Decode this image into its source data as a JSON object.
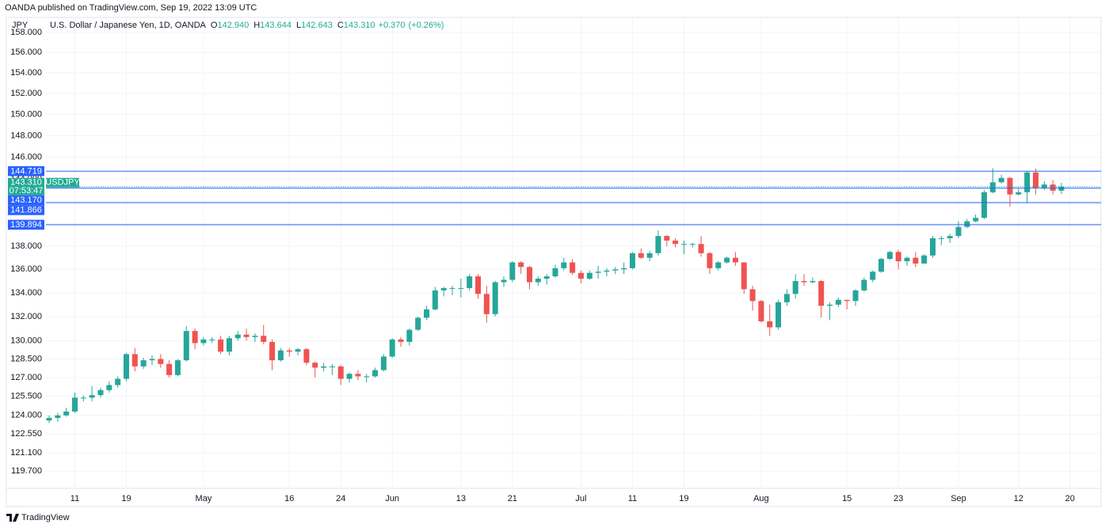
{
  "header": {
    "publisher": "OANDA published on TradingView.com, Sep 19, 2022 13:09 UTC",
    "brand": "TradingView"
  },
  "chart_data": {
    "type": "candlestick",
    "title": "U.S. Dollar / Japanese Yen, 1D, OANDA",
    "currency": "JPY",
    "legend_items": [
      {
        "prefix": "O",
        "value": 142.94,
        "label": "142.940"
      },
      {
        "prefix": "H",
        "value": 143.644,
        "label": "143.644"
      },
      {
        "prefix": "L",
        "value": 142.643,
        "label": "142.643"
      },
      {
        "prefix": "C",
        "value": 143.31,
        "label": "143.310"
      }
    ],
    "change": {
      "value": 0.37,
      "label": "+0.370"
    },
    "change_pct": {
      "value": 0.26,
      "label": "(+0.26%)"
    },
    "log_scale": true,
    "grid": true,
    "ylim": [
      118.4,
      159.5
    ],
    "yticks": [
      {
        "value": 119.7,
        "label": "119.700"
      },
      {
        "value": 121.1,
        "label": "121.100"
      },
      {
        "value": 122.55,
        "label": "122.550"
      },
      {
        "value": 124,
        "label": "124.000"
      },
      {
        "value": 125.5,
        "label": "125.500"
      },
      {
        "value": 127,
        "label": "127.000"
      },
      {
        "value": 128.5,
        "label": "128.500"
      },
      {
        "value": 130,
        "label": "130.000"
      },
      {
        "value": 132,
        "label": "132.000"
      },
      {
        "value": 134,
        "label": "134.000"
      },
      {
        "value": 136,
        "label": "136.000"
      },
      {
        "value": 138,
        "label": "138.000"
      },
      {
        "value": 140,
        "label": "140.000"
      },
      {
        "value": 142,
        "label": "142.000"
      },
      {
        "value": 144,
        "label": "144.000"
      },
      {
        "value": 146,
        "label": "146.000"
      },
      {
        "value": 148,
        "label": "148.000"
      },
      {
        "value": 150,
        "label": "150.000"
      },
      {
        "value": 152,
        "label": "152.000"
      },
      {
        "value": 154,
        "label": "154.000"
      },
      {
        "value": 156,
        "label": "156.000"
      },
      {
        "value": 158,
        "label": "158.000"
      }
    ],
    "xticks": [
      {
        "value": "2022-04-11",
        "label": "11"
      },
      {
        "value": "2022-04-19",
        "label": "19"
      },
      {
        "value": "2022-05-02",
        "label": "May"
      },
      {
        "value": "2022-05-16",
        "label": "16"
      },
      {
        "value": "2022-05-24",
        "label": "24"
      },
      {
        "value": "2022-06-01",
        "label": "Jun"
      },
      {
        "value": "2022-06-13",
        "label": "13"
      },
      {
        "value": "2022-06-21",
        "label": "21"
      },
      {
        "value": "2022-07-01",
        "label": "Jul"
      },
      {
        "value": "2022-07-11",
        "label": "11"
      },
      {
        "value": "2022-07-19",
        "label": "19"
      },
      {
        "value": "2022-08-01",
        "label": "Aug"
      },
      {
        "value": "2022-08-15",
        "label": "15"
      },
      {
        "value": "2022-08-23",
        "label": "23"
      },
      {
        "value": "2022-09-01",
        "label": "Sep"
      },
      {
        "value": "2022-09-12",
        "label": "12"
      },
      {
        "value": "2022-09-20",
        "label": "20"
      }
    ],
    "x": [
      "2022-04-06",
      "2022-04-07",
      "2022-04-08",
      "2022-04-11",
      "2022-04-12",
      "2022-04-13",
      "2022-04-14",
      "2022-04-15",
      "2022-04-18",
      "2022-04-19",
      "2022-04-20",
      "2022-04-21",
      "2022-04-22",
      "2022-04-25",
      "2022-04-26",
      "2022-04-27",
      "2022-04-28",
      "2022-04-29",
      "2022-05-02",
      "2022-05-03",
      "2022-05-04",
      "2022-05-05",
      "2022-05-06",
      "2022-05-09",
      "2022-05-10",
      "2022-05-11",
      "2022-05-12",
      "2022-05-13",
      "2022-05-16",
      "2022-05-17",
      "2022-05-18",
      "2022-05-19",
      "2022-05-20",
      "2022-05-23",
      "2022-05-24",
      "2022-05-25",
      "2022-05-26",
      "2022-05-27",
      "2022-05-30",
      "2022-05-31",
      "2022-06-01",
      "2022-06-02",
      "2022-06-03",
      "2022-06-06",
      "2022-06-07",
      "2022-06-08",
      "2022-06-09",
      "2022-06-10",
      "2022-06-13",
      "2022-06-14",
      "2022-06-15",
      "2022-06-16",
      "2022-06-17",
      "2022-06-20",
      "2022-06-21",
      "2022-06-22",
      "2022-06-23",
      "2022-06-24",
      "2022-06-27",
      "2022-06-28",
      "2022-06-29",
      "2022-06-30",
      "2022-07-01",
      "2022-07-04",
      "2022-07-05",
      "2022-07-06",
      "2022-07-07",
      "2022-07-08",
      "2022-07-11",
      "2022-07-12",
      "2022-07-13",
      "2022-07-14",
      "2022-07-15",
      "2022-07-18",
      "2022-07-19",
      "2022-07-20",
      "2022-07-21",
      "2022-07-22",
      "2022-07-25",
      "2022-07-26",
      "2022-07-27",
      "2022-07-28",
      "2022-07-29",
      "2022-08-01",
      "2022-08-02",
      "2022-08-03",
      "2022-08-04",
      "2022-08-05",
      "2022-08-08",
      "2022-08-09",
      "2022-08-10",
      "2022-08-11",
      "2022-08-12",
      "2022-08-15",
      "2022-08-16",
      "2022-08-17",
      "2022-08-18",
      "2022-08-19",
      "2022-08-22",
      "2022-08-23",
      "2022-08-24",
      "2022-08-25",
      "2022-08-26",
      "2022-08-29",
      "2022-08-30",
      "2022-08-31",
      "2022-09-01",
      "2022-09-02",
      "2022-09-05",
      "2022-09-06",
      "2022-09-07",
      "2022-09-08",
      "2022-09-09",
      "2022-09-12",
      "2022-09-13",
      "2022-09-14",
      "2022-09-15",
      "2022-09-16",
      "2022-09-19"
    ],
    "series": [
      {
        "name": "USDJPY",
        "up_color": "#26a69a",
        "down_color": "#ef5350",
        "open": [
          123.6,
          123.8,
          124.0,
          124.3,
          125.4,
          125.4,
          125.6,
          126.0,
          126.4,
          126.9,
          128.9,
          127.9,
          128.4,
          128.5,
          128.1,
          127.2,
          128.4,
          130.8,
          129.8,
          130.1,
          130.1,
          129.1,
          130.2,
          130.5,
          130.3,
          130.4,
          129.9,
          128.4,
          129.2,
          129.1,
          129.3,
          128.2,
          127.8,
          127.9,
          127.9,
          126.9,
          127.3,
          127.1,
          127.1,
          127.6,
          128.7,
          130.1,
          129.9,
          130.9,
          131.9,
          132.6,
          134.2,
          134.4,
          134.4,
          134.4,
          135.4,
          133.9,
          132.2,
          134.9,
          135.1,
          136.6,
          136.2,
          134.9,
          135.2,
          135.4,
          136.1,
          136.6,
          135.7,
          135.2,
          135.7,
          135.8,
          135.9,
          136.0,
          136.1,
          137.4,
          137.0,
          137.4,
          138.9,
          138.5,
          138.2,
          138.2,
          138.2,
          137.4,
          136.1,
          136.6,
          137.0,
          136.6,
          134.3,
          133.3,
          131.6,
          131.1,
          133.2,
          133.9,
          135.0,
          134.9,
          135.0,
          132.9,
          133.0,
          133.4,
          133.3,
          134.2,
          135.1,
          135.8,
          136.9,
          137.5,
          136.7,
          137.0,
          136.5,
          137.2,
          138.7,
          138.7,
          138.9,
          139.7,
          140.2,
          140.5,
          142.8,
          143.7,
          144.1,
          142.6,
          142.8,
          144.6,
          143.2,
          143.5,
          142.94
        ],
        "high": [
          124.0,
          124.2,
          124.6,
          125.8,
          125.6,
          126.3,
          126.2,
          126.7,
          127.1,
          129.0,
          129.4,
          128.6,
          128.8,
          128.9,
          128.4,
          128.5,
          131.2,
          131.0,
          130.3,
          130.3,
          130.4,
          130.4,
          130.8,
          131.0,
          130.6,
          131.3,
          130.1,
          129.4,
          129.4,
          129.4,
          129.4,
          128.3,
          128.2,
          128.1,
          128.0,
          127.4,
          127.6,
          127.3,
          127.8,
          128.9,
          130.2,
          130.3,
          131.0,
          132.0,
          132.9,
          134.5,
          134.5,
          134.6,
          135.2,
          135.6,
          135.6,
          134.6,
          135.0,
          135.4,
          136.7,
          136.7,
          136.3,
          135.4,
          135.6,
          136.4,
          137.0,
          136.9,
          135.9,
          135.9,
          136.3,
          136.1,
          136.2,
          136.6,
          137.5,
          137.8,
          137.6,
          139.4,
          139.0,
          138.7,
          138.5,
          138.3,
          138.9,
          137.5,
          136.7,
          137.1,
          137.5,
          136.6,
          134.6,
          133.4,
          133.0,
          133.4,
          134.3,
          135.6,
          135.6,
          135.3,
          135.1,
          133.2,
          133.6,
          133.4,
          134.3,
          135.3,
          135.9,
          137.0,
          137.6,
          137.7,
          137.1,
          137.5,
          137.3,
          138.9,
          138.9,
          139.1,
          140.2,
          140.4,
          140.8,
          143.0,
          144.99,
          144.4,
          144.2,
          143.1,
          144.7,
          144.96,
          143.8,
          143.9,
          143.644
        ],
        "low": [
          123.4,
          123.5,
          123.9,
          124.2,
          125.1,
          125.1,
          125.4,
          125.8,
          126.2,
          126.7,
          127.5,
          127.7,
          128.0,
          127.8,
          127.0,
          127.1,
          128.3,
          129.3,
          129.6,
          129.8,
          128.9,
          128.8,
          130.0,
          130.0,
          129.9,
          129.7,
          127.6,
          128.3,
          128.7,
          128.8,
          128.0,
          127.0,
          127.5,
          127.2,
          126.4,
          126.6,
          126.8,
          126.6,
          127.0,
          127.5,
          128.6,
          129.5,
          129.6,
          130.8,
          131.7,
          132.5,
          133.7,
          133.8,
          133.6,
          134.2,
          133.5,
          131.5,
          132.0,
          134.5,
          134.9,
          135.6,
          134.3,
          134.6,
          134.7,
          135.3,
          135.9,
          135.5,
          134.8,
          135.1,
          135.2,
          135.4,
          135.6,
          135.6,
          136.0,
          136.9,
          136.7,
          137.2,
          138.0,
          137.9,
          137.3,
          137.9,
          137.1,
          135.6,
          135.9,
          136.5,
          136.3,
          133.9,
          132.5,
          131.5,
          130.4,
          130.9,
          132.9,
          133.5,
          134.6,
          134.8,
          131.9,
          131.7,
          132.8,
          132.6,
          132.9,
          134.1,
          134.9,
          135.7,
          136.8,
          136.0,
          136.3,
          136.2,
          136.5,
          137.0,
          138.1,
          138.3,
          138.7,
          139.6,
          140.1,
          140.4,
          142.7,
          143.6,
          141.5,
          142.5,
          141.8,
          142.6,
          143.0,
          142.6,
          142.643
        ],
        "close": [
          123.8,
          124.0,
          124.3,
          125.4,
          125.4,
          125.6,
          126.0,
          126.4,
          126.9,
          128.9,
          127.9,
          128.4,
          128.5,
          128.1,
          127.2,
          128.4,
          130.8,
          129.8,
          130.1,
          130.1,
          129.1,
          130.2,
          130.5,
          130.3,
          130.4,
          129.9,
          128.4,
          129.2,
          129.1,
          129.3,
          128.2,
          127.8,
          127.9,
          127.9,
          126.9,
          127.3,
          127.1,
          127.1,
          127.6,
          128.7,
          130.1,
          129.9,
          130.9,
          131.9,
          132.6,
          134.2,
          134.4,
          134.4,
          134.4,
          135.4,
          133.9,
          132.2,
          134.9,
          135.1,
          136.6,
          136.2,
          134.9,
          135.2,
          135.4,
          136.1,
          136.6,
          135.7,
          135.2,
          135.7,
          135.8,
          135.9,
          136.0,
          136.1,
          137.4,
          137.0,
          137.4,
          138.9,
          138.5,
          138.2,
          138.2,
          138.2,
          137.4,
          136.1,
          136.6,
          137.0,
          136.6,
          134.3,
          133.3,
          131.6,
          131.1,
          133.2,
          133.9,
          135.0,
          134.9,
          135.0,
          132.9,
          133.0,
          133.4,
          133.3,
          134.2,
          135.1,
          135.8,
          136.9,
          137.5,
          136.7,
          137.0,
          136.5,
          137.2,
          138.7,
          138.7,
          138.9,
          139.7,
          140.2,
          140.5,
          142.8,
          143.7,
          144.1,
          142.6,
          142.8,
          144.6,
          143.2,
          143.5,
          142.94,
          143.31
        ]
      }
    ],
    "last_price": {
      "value": 143.31,
      "label": "143.310",
      "countdown": "07:53:47",
      "color": "#22ab94"
    },
    "price_line_color": "#2962ff",
    "price_lines": [
      {
        "value": 144.719,
        "label": "144.719"
      },
      {
        "value": 143.17,
        "label": "143.170"
      },
      {
        "value": 141.866,
        "label": "141.866"
      },
      {
        "value": 139.894,
        "label": "139.894"
      }
    ]
  }
}
